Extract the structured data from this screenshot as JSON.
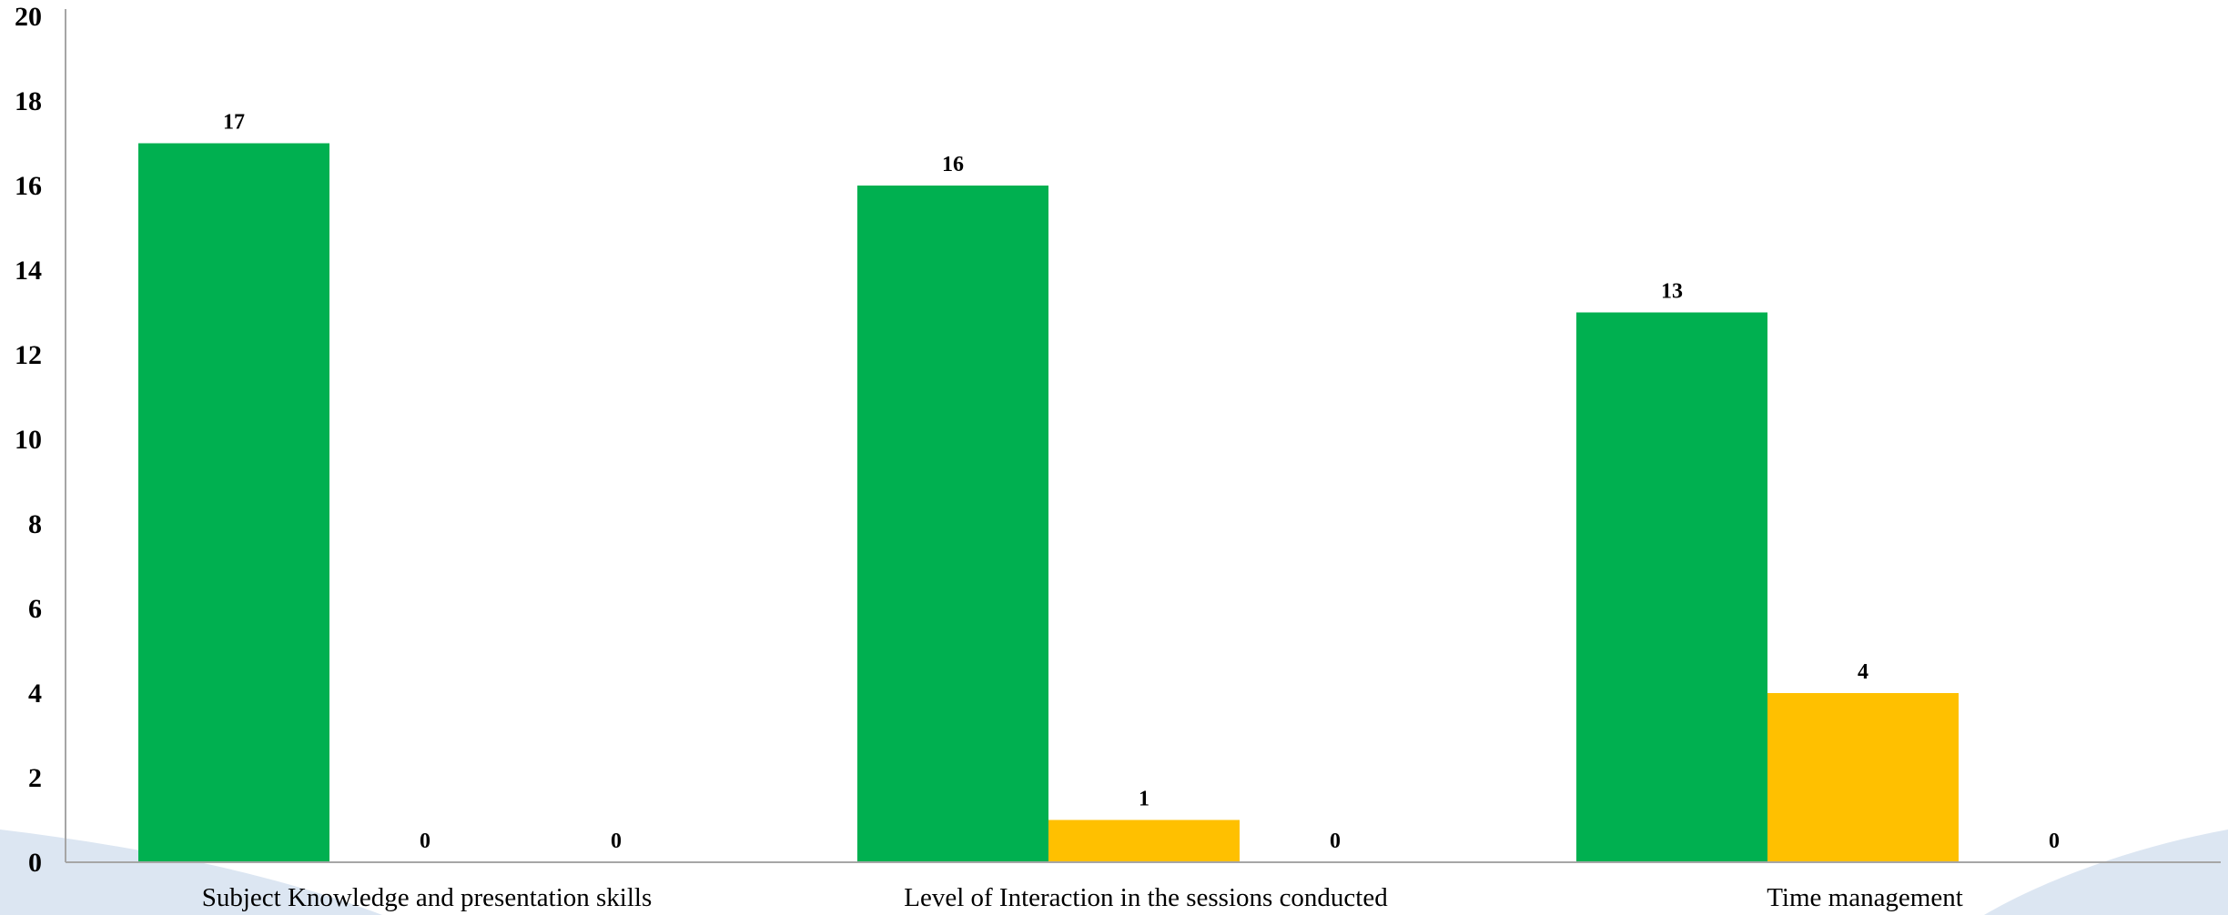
{
  "chart_data": {
    "type": "bar",
    "categories": [
      "Subject Knowledge and presentation skills",
      "Level of Interaction in the sessions conducted",
      "Time management"
    ],
    "series": [
      {
        "values": [
          17,
          16,
          13
        ],
        "color": "#00B050"
      },
      {
        "values": [
          0,
          1,
          4
        ],
        "color": "#FFC000"
      },
      {
        "values": [
          0,
          0,
          0
        ],
        "color": "#A5A5A5"
      }
    ],
    "ylim": [
      0,
      20
    ],
    "yticks": [
      0,
      2,
      4,
      6,
      8,
      10,
      12,
      14,
      16,
      18,
      20
    ],
    "data_labels": true,
    "grid": false,
    "legend": "none",
    "axis_color": "#A6A6A6",
    "background_wave_color": "#DCE6F2"
  }
}
